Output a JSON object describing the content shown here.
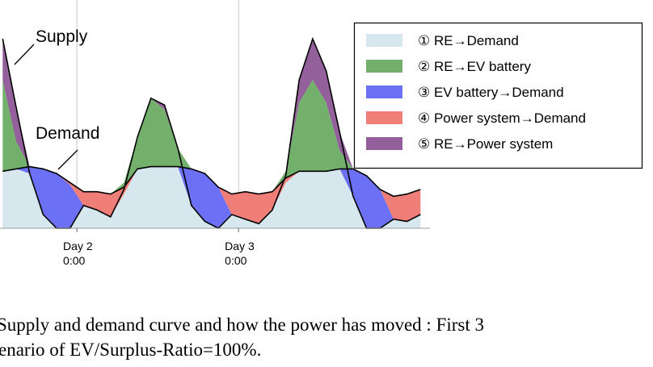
{
  "chart_data": {
    "type": "stacked_area",
    "x": [
      13,
      15,
      17,
      19,
      21,
      23,
      25,
      27,
      29,
      31,
      33,
      35,
      37,
      39,
      41,
      43,
      45,
      47,
      49,
      51,
      53,
      55,
      57,
      59,
      61,
      63,
      65,
      67,
      69,
      71,
      73,
      75
    ],
    "xlim": [
      12.6,
      76.4
    ],
    "xticks": [
      {
        "value": 24,
        "label": "Day 2\n0:00"
      },
      {
        "value": 48,
        "label": "Day 3\n0:00"
      }
    ],
    "ylim": [
      0,
      100
    ],
    "grid": true,
    "series": [
      {
        "name": "① RE→Demand",
        "color": "#d6e8ed",
        "values": [
          25,
          26,
          24,
          6,
          0,
          0,
          10,
          8,
          5,
          15,
          26,
          27,
          27,
          27,
          10,
          3,
          0,
          6,
          4,
          2,
          8,
          20,
          25,
          25,
          25,
          26,
          14,
          0,
          0,
          4,
          3,
          6
        ]
      },
      {
        "name": "② RE→EV battery",
        "color": "#72b06c",
        "values": [
          40,
          12,
          0,
          0,
          0,
          0,
          0,
          0,
          0,
          2,
          14,
          30,
          25,
          8,
          0,
          0,
          0,
          0,
          0,
          0,
          0,
          3,
          30,
          40,
          30,
          8,
          0,
          0,
          0,
          0,
          0,
          0
        ]
      },
      {
        "name": "③ EV battery→Demand",
        "color": "#6c70f4",
        "values": [
          0,
          0,
          3,
          20,
          24,
          19,
          0,
          0,
          0,
          0,
          0,
          0,
          0,
          0,
          16,
          21,
          18,
          0,
          0,
          0,
          0,
          0,
          0,
          0,
          0,
          0,
          12,
          23,
          17,
          0,
          0,
          0
        ]
      },
      {
        "name": "④ Power system→Demand",
        "color": "#ef7e79",
        "values": [
          0,
          0,
          0,
          0,
          0,
          1,
          6,
          8,
          10,
          3,
          0,
          0,
          0,
          0,
          0,
          0,
          0,
          9,
          12,
          13,
          8,
          2,
          0,
          0,
          0,
          0,
          0,
          0,
          0,
          10,
          12,
          11
        ]
      },
      {
        "name": "⑤ RE→Power system",
        "color": "#93609b",
        "values": [
          18,
          15,
          0,
          0,
          0,
          0,
          0,
          0,
          0,
          0,
          0,
          0,
          2,
          0,
          0,
          0,
          0,
          0,
          0,
          0,
          0,
          0,
          10,
          18,
          14,
          8,
          0,
          0,
          0,
          0,
          0,
          0
        ]
      }
    ],
    "annotations": [
      "Supply",
      "Demand"
    ],
    "legend": "upper-right",
    "caption": [
      "Supply and demand curve and how the power has moved : First 3",
      "enario of EV/Surplus-Ratio=100%."
    ]
  }
}
